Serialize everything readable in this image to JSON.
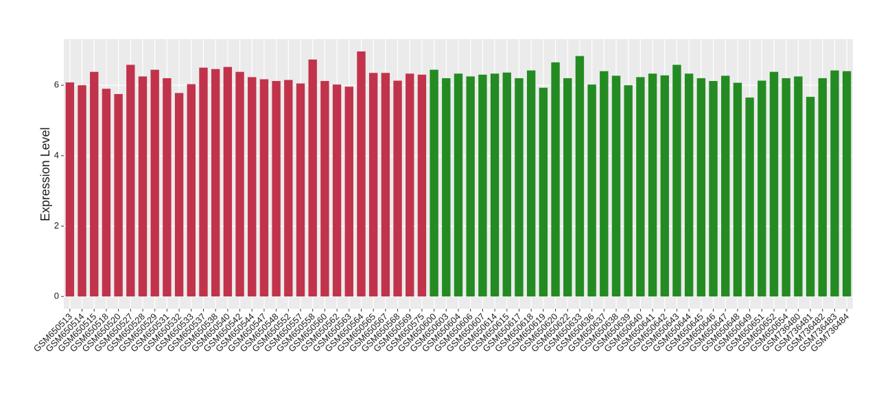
{
  "chart_data": {
    "type": "bar",
    "y_label": "Expression Level",
    "categories": [
      "GSM650513",
      "GSM650514",
      "GSM650515",
      "GSM650518",
      "GSM650520",
      "GSM650527",
      "GSM650528",
      "GSM650529",
      "GSM650531",
      "GSM650532",
      "GSM650533",
      "GSM650537",
      "GSM650538",
      "GSM650540",
      "GSM650542",
      "GSM650544",
      "GSM650547",
      "GSM650548",
      "GSM650552",
      "GSM650557",
      "GSM650558",
      "GSM650560",
      "GSM650562",
      "GSM650563",
      "GSM650564",
      "GSM650565",
      "GSM650567",
      "GSM650568",
      "GSM650569",
      "GSM650575",
      "GSM650600",
      "GSM650603",
      "GSM650604",
      "GSM650606",
      "GSM650607",
      "GSM650614",
      "GSM650615",
      "GSM650617",
      "GSM650618",
      "GSM650619",
      "GSM650620",
      "GSM650622",
      "GSM650633",
      "GSM650636",
      "GSM650637",
      "GSM650638",
      "GSM650639",
      "GSM650640",
      "GSM650641",
      "GSM650642",
      "GSM650643",
      "GSM650644",
      "GSM650645",
      "GSM650646",
      "GSM650647",
      "GSM650648",
      "GSM650649",
      "GSM650651",
      "GSM650652",
      "GSM650654",
      "GSM736480",
      "GSM736481",
      "GSM736482",
      "GSM736483",
      "GSM736484"
    ],
    "values": [
      6.08,
      6.0,
      6.38,
      5.9,
      5.75,
      6.58,
      6.25,
      6.44,
      6.2,
      5.78,
      6.03,
      6.5,
      6.46,
      6.52,
      6.38,
      6.23,
      6.17,
      6.12,
      6.15,
      6.05,
      6.73,
      6.12,
      6.02,
      5.96,
      6.96,
      6.35,
      6.35,
      6.13,
      6.33,
      6.3,
      6.44,
      6.2,
      6.33,
      6.25,
      6.3,
      6.33,
      6.36,
      6.2,
      6.42,
      5.93,
      6.65,
      6.2,
      6.83,
      6.02,
      6.4,
      6.27,
      6.0,
      6.23,
      6.33,
      6.28,
      6.58,
      6.33,
      6.2,
      6.12,
      6.27,
      6.07,
      5.65,
      6.13,
      6.38,
      6.2,
      6.25,
      5.67,
      6.2,
      6.42,
      6.4
    ],
    "colors": [
      "#c1334b",
      "#c1334b",
      "#c1334b",
      "#c1334b",
      "#c1334b",
      "#c1334b",
      "#c1334b",
      "#c1334b",
      "#c1334b",
      "#c1334b",
      "#c1334b",
      "#c1334b",
      "#c1334b",
      "#c1334b",
      "#c1334b",
      "#c1334b",
      "#c1334b",
      "#c1334b",
      "#c1334b",
      "#c1334b",
      "#c1334b",
      "#c1334b",
      "#c1334b",
      "#c1334b",
      "#c1334b",
      "#c1334b",
      "#c1334b",
      "#c1334b",
      "#c1334b",
      "#c1334b",
      "#238b22",
      "#238b22",
      "#238b22",
      "#238b22",
      "#238b22",
      "#238b22",
      "#238b22",
      "#238b22",
      "#238b22",
      "#238b22",
      "#238b22",
      "#238b22",
      "#238b22",
      "#238b22",
      "#238b22",
      "#238b22",
      "#238b22",
      "#238b22",
      "#238b22",
      "#238b22",
      "#238b22",
      "#238b22",
      "#238b22",
      "#238b22",
      "#238b22",
      "#238b22",
      "#238b22",
      "#238b22",
      "#238b22",
      "#238b22",
      "#238b22",
      "#238b22",
      "#238b22",
      "#238b22",
      "#238b22"
    ],
    "ylim": [
      -0.35,
      7.31
    ],
    "yticks": [
      0,
      2,
      4,
      6
    ],
    "grid": true
  }
}
